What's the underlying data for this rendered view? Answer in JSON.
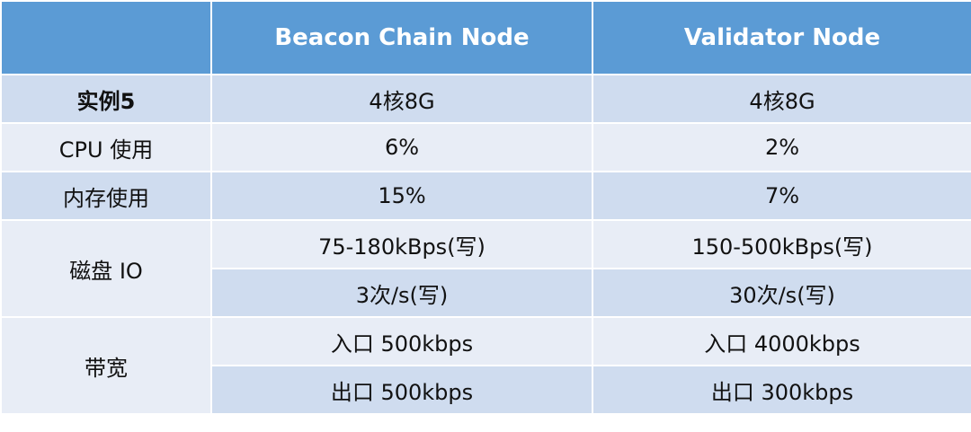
{
  "header": {
    "col0": "",
    "col1": "Beacon Chain Node",
    "col2": "Validator Node"
  },
  "rows": [
    {
      "label": "实例5",
      "beacon": "4核8G",
      "validator": "4核8G"
    },
    {
      "label": "CPU 使用",
      "beacon": "6%",
      "validator": "2%"
    },
    {
      "label": "内存使用",
      "beacon": "15%",
      "validator": "7%"
    },
    {
      "label": "磁盘 IO",
      "beacon": "75-180kBps(写)",
      "validator": "150-500kBps(写)"
    },
    {
      "label": "",
      "beacon": "3次/s(写)",
      "validator": "30次/s(写)"
    },
    {
      "label": "带宽",
      "beacon": "入口 500kbps",
      "validator": "入口 4000kbps"
    },
    {
      "label": "",
      "beacon": "出口 500kbps",
      "validator": "出口 300kbps"
    }
  ]
}
